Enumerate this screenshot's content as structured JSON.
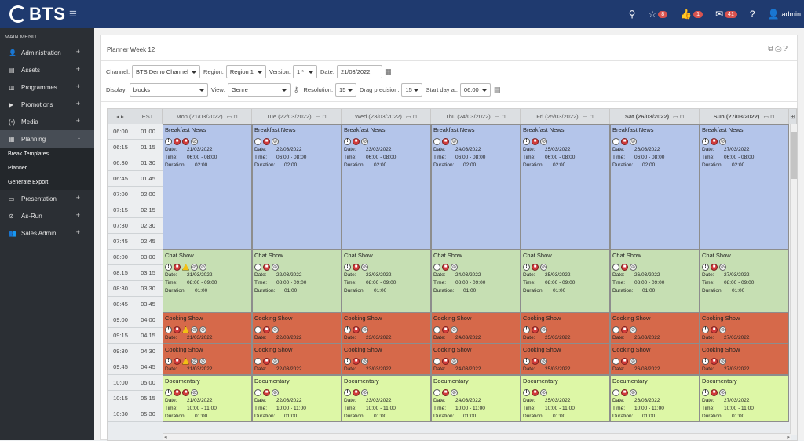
{
  "app": {
    "brand": "BTS",
    "user": "admin"
  },
  "topbar": {
    "icons": [
      {
        "icon": "search-icon",
        "glyph": "⚲",
        "badge": ""
      },
      {
        "icon": "star-icon",
        "glyph": "☆",
        "badge": "8"
      },
      {
        "icon": "thumbs-up-icon",
        "glyph": "👍",
        "badge": "1"
      },
      {
        "icon": "mail-icon",
        "glyph": "✉",
        "badge": "41"
      },
      {
        "icon": "help-icon",
        "glyph": "?",
        "badge": ""
      }
    ]
  },
  "sidebar": {
    "title": "MAIN MENU",
    "items": [
      {
        "name": "administration",
        "icon": "👤",
        "label": "Administration",
        "toggle": "+"
      },
      {
        "name": "assets",
        "icon": "▤",
        "label": "Assets",
        "toggle": "+"
      },
      {
        "name": "programmes",
        "icon": "▥",
        "label": "Programmes",
        "toggle": "+"
      },
      {
        "name": "promotions",
        "icon": "▶",
        "label": "Promotions",
        "toggle": "+"
      },
      {
        "name": "media",
        "icon": "(•)",
        "label": "Media",
        "toggle": "+"
      },
      {
        "name": "planning",
        "icon": "▦",
        "label": "Planning",
        "toggle": "-"
      },
      {
        "name": "presentation",
        "icon": "▭",
        "label": "Presentation",
        "toggle": "+"
      },
      {
        "name": "as-run",
        "icon": "⊘",
        "label": "As-Run",
        "toggle": "+"
      },
      {
        "name": "sales-admin",
        "icon": "👥",
        "label": "Sales Admin",
        "toggle": "+"
      }
    ],
    "submenu": [
      "Break Templates",
      "Planner",
      "Generate Export"
    ]
  },
  "page": {
    "title": "Planner Week 12",
    "icons": "⧉⎙?"
  },
  "filters": {
    "channel_label": "Channel:",
    "channel": "BTS Demo Channel",
    "region_label": "Region:",
    "region": "Region 1",
    "version_label": "Version:",
    "version": "1 *",
    "date_label": "Date:",
    "date": "21/03/2022",
    "display_label": "Display:",
    "display": "blocks",
    "view_label": "View:",
    "view": "Genre",
    "resolution_label": "Resolution:",
    "resolution": "15",
    "drag_label": "Drag precision:",
    "drag": "15",
    "startday_label": "Start day at:",
    "startday": "06:00"
  },
  "grid": {
    "corner": "◂ ▸",
    "est": "EST",
    "days": [
      "Mon (21/03/2022)",
      "Tue (22/03/2022)",
      "Wed (23/03/2022)",
      "Thu (24/03/2022)",
      "Fri (25/03/2022)",
      "Sat (26/03/2022)",
      "Sun (27/03/2022)"
    ],
    "times": [
      "06:00",
      "06:15",
      "06:30",
      "06:45",
      "07:00",
      "07:15",
      "07:30",
      "07:45",
      "08:00",
      "08:15",
      "08:30",
      "08:45",
      "09:00",
      "09:15",
      "09:30",
      "09:45",
      "10:00",
      "10:15",
      "10:30"
    ],
    "est_times": [
      "01:00",
      "01:15",
      "01:30",
      "01:45",
      "02:00",
      "02:15",
      "02:30",
      "02:45",
      "03:00",
      "03:15",
      "03:30",
      "03:45",
      "04:00",
      "04:15",
      "04:30",
      "04:45",
      "05:00",
      "05:15",
      "05:30"
    ],
    "labels": {
      "date": "Date:",
      "time": "Time:",
      "duration": "Duration:"
    },
    "rows": [
      {
        "title": "Breakfast News",
        "color": "#b4c5ea",
        "time": "06:00 - 08:00",
        "duration": "02:00",
        "start": 0,
        "span": 8,
        "icons": [
          "w",
          "r",
          "g"
        ],
        "mon_icons": [
          "w",
          "r",
          "r",
          "g"
        ],
        "show_time": true
      },
      {
        "title": "Chat Show",
        "color": "#c6dfb3",
        "time": "08:00 - 09:00",
        "duration": "01:00",
        "start": 8,
        "span": 4,
        "icons": [
          "w",
          "r",
          "g"
        ],
        "mon_icons": [
          "w",
          "r",
          "y",
          "g",
          "g"
        ],
        "show_time": true
      },
      {
        "title": "Cooking Show",
        "color": "#d6694a",
        "time": "",
        "duration": "",
        "start": 12,
        "span": 2,
        "icons": [
          "w",
          "r",
          "g"
        ],
        "mon_icons": [
          "w",
          "r",
          "y",
          "g",
          "g"
        ],
        "show_time": false
      },
      {
        "title": "Cooking Show",
        "color": "#d6694a",
        "time": "",
        "duration": "",
        "start": 14,
        "span": 2,
        "icons": [
          "w",
          "r",
          "g"
        ],
        "mon_icons": [
          "w",
          "r",
          "y",
          "g",
          "g"
        ],
        "show_time": false
      },
      {
        "title": "Documentary",
        "color": "#ddf7a6",
        "time": "10:00 - 11:00",
        "duration": "01:00",
        "start": 16,
        "span": 3,
        "icons": [
          "w",
          "r",
          "g"
        ],
        "mon_icons": [
          "w",
          "r",
          "r",
          "g"
        ],
        "show_time": true
      }
    ],
    "dates": [
      "21/03/2022",
      "22/03/2022",
      "23/03/2022",
      "24/03/2022",
      "25/03/2022",
      "26/03/2022",
      "27/03/2022"
    ]
  }
}
